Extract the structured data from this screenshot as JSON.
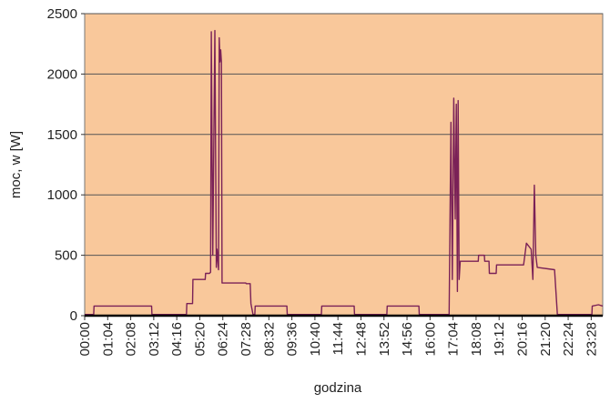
{
  "chart_data": {
    "type": "line",
    "y_label": "moc, w [W]",
    "x_label": "godzina",
    "color": "#7a2157",
    "background": "#f9c89b",
    "grid": true,
    "ylim": [
      0,
      2500
    ],
    "yticks": [
      0,
      500,
      1000,
      1500,
      2000,
      2500
    ],
    "xlim": [
      0,
      1440
    ],
    "xticks": [
      {
        "value": 0,
        "label": "00:00"
      },
      {
        "value": 64,
        "label": "01:04"
      },
      {
        "value": 128,
        "label": "02:08"
      },
      {
        "value": 192,
        "label": "03:12"
      },
      {
        "value": 256,
        "label": "04:16"
      },
      {
        "value": 320,
        "label": "05:20"
      },
      {
        "value": 384,
        "label": "06:24"
      },
      {
        "value": 448,
        "label": "07:28"
      },
      {
        "value": 512,
        "label": "08:32"
      },
      {
        "value": 576,
        "label": "09:36"
      },
      {
        "value": 640,
        "label": "10:40"
      },
      {
        "value": 704,
        "label": "11:44"
      },
      {
        "value": 768,
        "label": "12:48"
      },
      {
        "value": 832,
        "label": "13:52"
      },
      {
        "value": 896,
        "label": "14:56"
      },
      {
        "value": 960,
        "label": "16:00"
      },
      {
        "value": 1024,
        "label": "17:04"
      },
      {
        "value": 1088,
        "label": "18:08"
      },
      {
        "value": 1152,
        "label": "19:12"
      },
      {
        "value": 1216,
        "label": "20:16"
      },
      {
        "value": 1280,
        "label": "21:20"
      },
      {
        "value": 1344,
        "label": "22:24"
      },
      {
        "value": 1408,
        "label": "23:28"
      }
    ],
    "x": [
      0,
      25,
      26,
      186,
      187,
      283,
      284,
      300,
      301,
      335,
      336,
      347,
      350,
      352,
      356,
      362,
      366,
      368,
      372,
      374,
      376,
      378,
      380,
      382,
      448,
      449,
      460,
      462,
      468,
      473,
      474,
      562,
      563,
      658,
      659,
      749,
      750,
      840,
      841,
      929,
      930,
      1013,
      1018,
      1022,
      1026,
      1030,
      1033,
      1036,
      1038,
      1041,
      1044,
      1051,
      1094,
      1095,
      1111,
      1112,
      1124,
      1125,
      1144,
      1145,
      1220,
      1228,
      1241,
      1246,
      1250,
      1254,
      1258,
      1306,
      1314,
      1410,
      1411,
      1428,
      1440
    ],
    "values": [
      10,
      10,
      80,
      80,
      10,
      10,
      100,
      100,
      300,
      300,
      350,
      350,
      360,
      2350,
      500,
      2360,
      400,
      550,
      380,
      2300,
      2100,
      2200,
      2100,
      270,
      270,
      265,
      265,
      100,
      10,
      10,
      80,
      80,
      10,
      10,
      80,
      80,
      10,
      10,
      80,
      80,
      10,
      10,
      1600,
      300,
      1800,
      800,
      1750,
      200,
      1780,
      300,
      450,
      450,
      450,
      500,
      500,
      450,
      450,
      350,
      350,
      420,
      420,
      600,
      550,
      300,
      1080,
      500,
      400,
      380,
      10,
      10,
      80,
      90,
      80
    ]
  }
}
